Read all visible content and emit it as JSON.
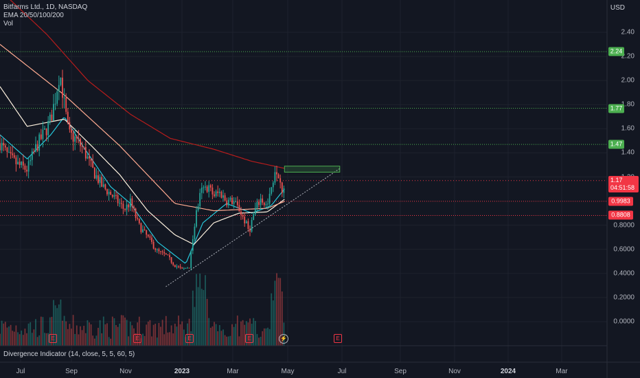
{
  "header": {
    "symbol_line": "Bitfarms Ltd., 1D, NASDAQ",
    "ema_line": "EMA 20/50/100/200",
    "vol_line": "Vol"
  },
  "price_axis": {
    "currency": "USD",
    "ticks": [
      "2.40",
      "2.20",
      "2.00",
      "1.80",
      "1.60",
      "1.40",
      "1.20",
      "0.8000",
      "0.6000",
      "0.4000",
      "0.2000",
      "0.0000"
    ],
    "tick_values": [
      2.4,
      2.2,
      2.0,
      1.8,
      1.6,
      1.4,
      1.2,
      0.8,
      0.6,
      0.4,
      0.2,
      0.0
    ]
  },
  "time_axis": {
    "labels": [
      "Jul",
      "Sep",
      "Nov",
      "2023",
      "Mar",
      "May",
      "Jul",
      "Sep",
      "Nov",
      "2024",
      "Mar"
    ],
    "bold": [
      false,
      false,
      false,
      true,
      false,
      false,
      false,
      false,
      false,
      true,
      false
    ]
  },
  "horizontal_levels": [
    {
      "value": 2.24,
      "label": "2.24",
      "color": "#4caf50"
    },
    {
      "value": 1.77,
      "label": "1.77",
      "color": "#4caf50"
    },
    {
      "value": 1.47,
      "label": "1.47",
      "color": "#4caf50"
    },
    {
      "value": 0.9983,
      "label": "0.9983",
      "color": "#f23645"
    },
    {
      "value": 0.8808,
      "label": "0.8808",
      "color": "#f23645"
    }
  ],
  "current_price": {
    "value": 1.17,
    "label": "1.17",
    "countdown": "04:51:58",
    "color": "#f23645"
  },
  "indicator_pane": {
    "label": "Divergence Indicator (14, close, 5, 5, 60, 5)"
  },
  "markers": {
    "earnings": "E",
    "dividend_icon": "lightning-icon"
  },
  "colors": {
    "up": "#26a69a",
    "down": "#ef5350",
    "ema20": "#26c6da",
    "ema50": "#fff3e0",
    "ema100": "#ffab91",
    "ema200": "#b71c1c"
  },
  "chart_data": {
    "type": "candlestick",
    "title": "Bitfarms Ltd., 1D, NASDAQ",
    "x_range": [
      "2022-06-10",
      "2024-04-10"
    ],
    "ylim": [
      -0.1,
      2.55
    ],
    "y_scale": "linear",
    "grid": true,
    "close_series": [
      [
        "2022-06-10",
        1.48
      ],
      [
        "2022-06-20",
        1.36
      ],
      [
        "2022-06-30",
        1.3
      ],
      [
        "2022-07-10",
        1.26
      ],
      [
        "2022-07-20",
        1.45
      ],
      [
        "2022-07-30",
        1.58
      ],
      [
        "2022-08-05",
        1.68
      ],
      [
        "2022-08-10",
        1.85
      ],
      [
        "2022-08-15",
        2.08
      ],
      [
        "2022-08-20",
        1.8
      ],
      [
        "2022-08-25",
        1.55
      ],
      [
        "2022-09-01",
        1.52
      ],
      [
        "2022-09-10",
        1.43
      ],
      [
        "2022-09-20",
        1.26
      ],
      [
        "2022-10-01",
        1.12
      ],
      [
        "2022-10-10",
        1.06
      ],
      [
        "2022-10-20",
        0.98
      ],
      [
        "2022-10-25",
        0.93
      ],
      [
        "2022-11-01",
        0.99
      ],
      [
        "2022-11-10",
        0.8
      ],
      [
        "2022-11-20",
        0.7
      ],
      [
        "2022-12-01",
        0.58
      ],
      [
        "2022-12-10",
        0.55
      ],
      [
        "2022-12-20",
        0.47
      ],
      [
        "2022-12-28",
        0.43
      ],
      [
        "2023-01-05",
        0.46
      ],
      [
        "2023-01-12",
        0.88
      ],
      [
        "2023-01-18",
        1.08
      ],
      [
        "2023-01-25",
        1.12
      ],
      [
        "2023-02-01",
        1.05
      ],
      [
        "2023-02-08",
        1.07
      ],
      [
        "2023-02-15",
        1.0
      ],
      [
        "2023-02-22",
        1.0
      ],
      [
        "2023-03-01",
        0.93
      ],
      [
        "2023-03-08",
        0.82
      ],
      [
        "2023-03-12",
        0.75
      ],
      [
        "2023-03-18",
        0.92
      ],
      [
        "2023-03-25",
        1.02
      ],
      [
        "2023-04-01",
        0.95
      ],
      [
        "2023-04-05",
        1.08
      ],
      [
        "2023-04-10",
        1.3
      ],
      [
        "2023-04-14",
        1.22
      ],
      [
        "2023-04-18",
        1.09
      ],
      [
        "2023-04-21",
        1.17
      ]
    ],
    "ema_series": [
      {
        "name": "EMA 20",
        "color": "#26c6da",
        "values": [
          [
            "2022-06-10",
            1.55
          ],
          [
            "2022-07-10",
            1.35
          ],
          [
            "2022-08-05",
            1.55
          ],
          [
            "2022-08-20",
            1.7
          ],
          [
            "2022-09-10",
            1.45
          ],
          [
            "2022-10-10",
            1.12
          ],
          [
            "2022-11-01",
            0.98
          ],
          [
            "2022-12-01",
            0.66
          ],
          [
            "2023-01-01",
            0.48
          ],
          [
            "2023-01-20",
            0.82
          ],
          [
            "2023-02-15",
            0.98
          ],
          [
            "2023-03-15",
            0.9
          ],
          [
            "2023-04-05",
            0.96
          ],
          [
            "2023-04-21",
            1.11
          ]
        ]
      },
      {
        "name": "EMA 50",
        "color": "#fff3e0",
        "values": [
          [
            "2022-06-10",
            1.95
          ],
          [
            "2022-07-10",
            1.62
          ],
          [
            "2022-08-20",
            1.68
          ],
          [
            "2022-09-20",
            1.45
          ],
          [
            "2022-10-20",
            1.22
          ],
          [
            "2022-11-20",
            0.92
          ],
          [
            "2022-12-20",
            0.72
          ],
          [
            "2023-01-10",
            0.64
          ],
          [
            "2023-02-01",
            0.82
          ],
          [
            "2023-03-01",
            0.9
          ],
          [
            "2023-04-01",
            0.91
          ],
          [
            "2023-04-21",
            1.02
          ]
        ]
      },
      {
        "name": "EMA 100",
        "color": "#ffab91",
        "values": [
          [
            "2022-06-10",
            2.3
          ],
          [
            "2022-08-20",
            1.88
          ],
          [
            "2022-10-20",
            1.46
          ],
          [
            "2022-12-20",
            0.98
          ],
          [
            "2023-02-01",
            0.92
          ],
          [
            "2023-04-01",
            0.94
          ],
          [
            "2023-04-21",
            1.0
          ]
        ]
      },
      {
        "name": "EMA 200",
        "color": "#b71c1c",
        "values": [
          [
            "2022-06-10",
            2.75
          ],
          [
            "2022-08-01",
            2.38
          ],
          [
            "2022-09-15",
            2.0
          ],
          [
            "2022-11-01",
            1.72
          ],
          [
            "2022-12-15",
            1.52
          ],
          [
            "2023-02-01",
            1.43
          ],
          [
            "2023-03-15",
            1.33
          ],
          [
            "2023-04-21",
            1.27
          ]
        ]
      }
    ],
    "trendline": {
      "from": [
        "2022-12-10",
        0.29
      ],
      "to": [
        "2023-06-20",
        1.27
      ]
    },
    "rectangle": {
      "from": [
        "2023-04-20",
        1.29
      ],
      "to": [
        "2023-06-20",
        1.24
      ]
    }
  }
}
